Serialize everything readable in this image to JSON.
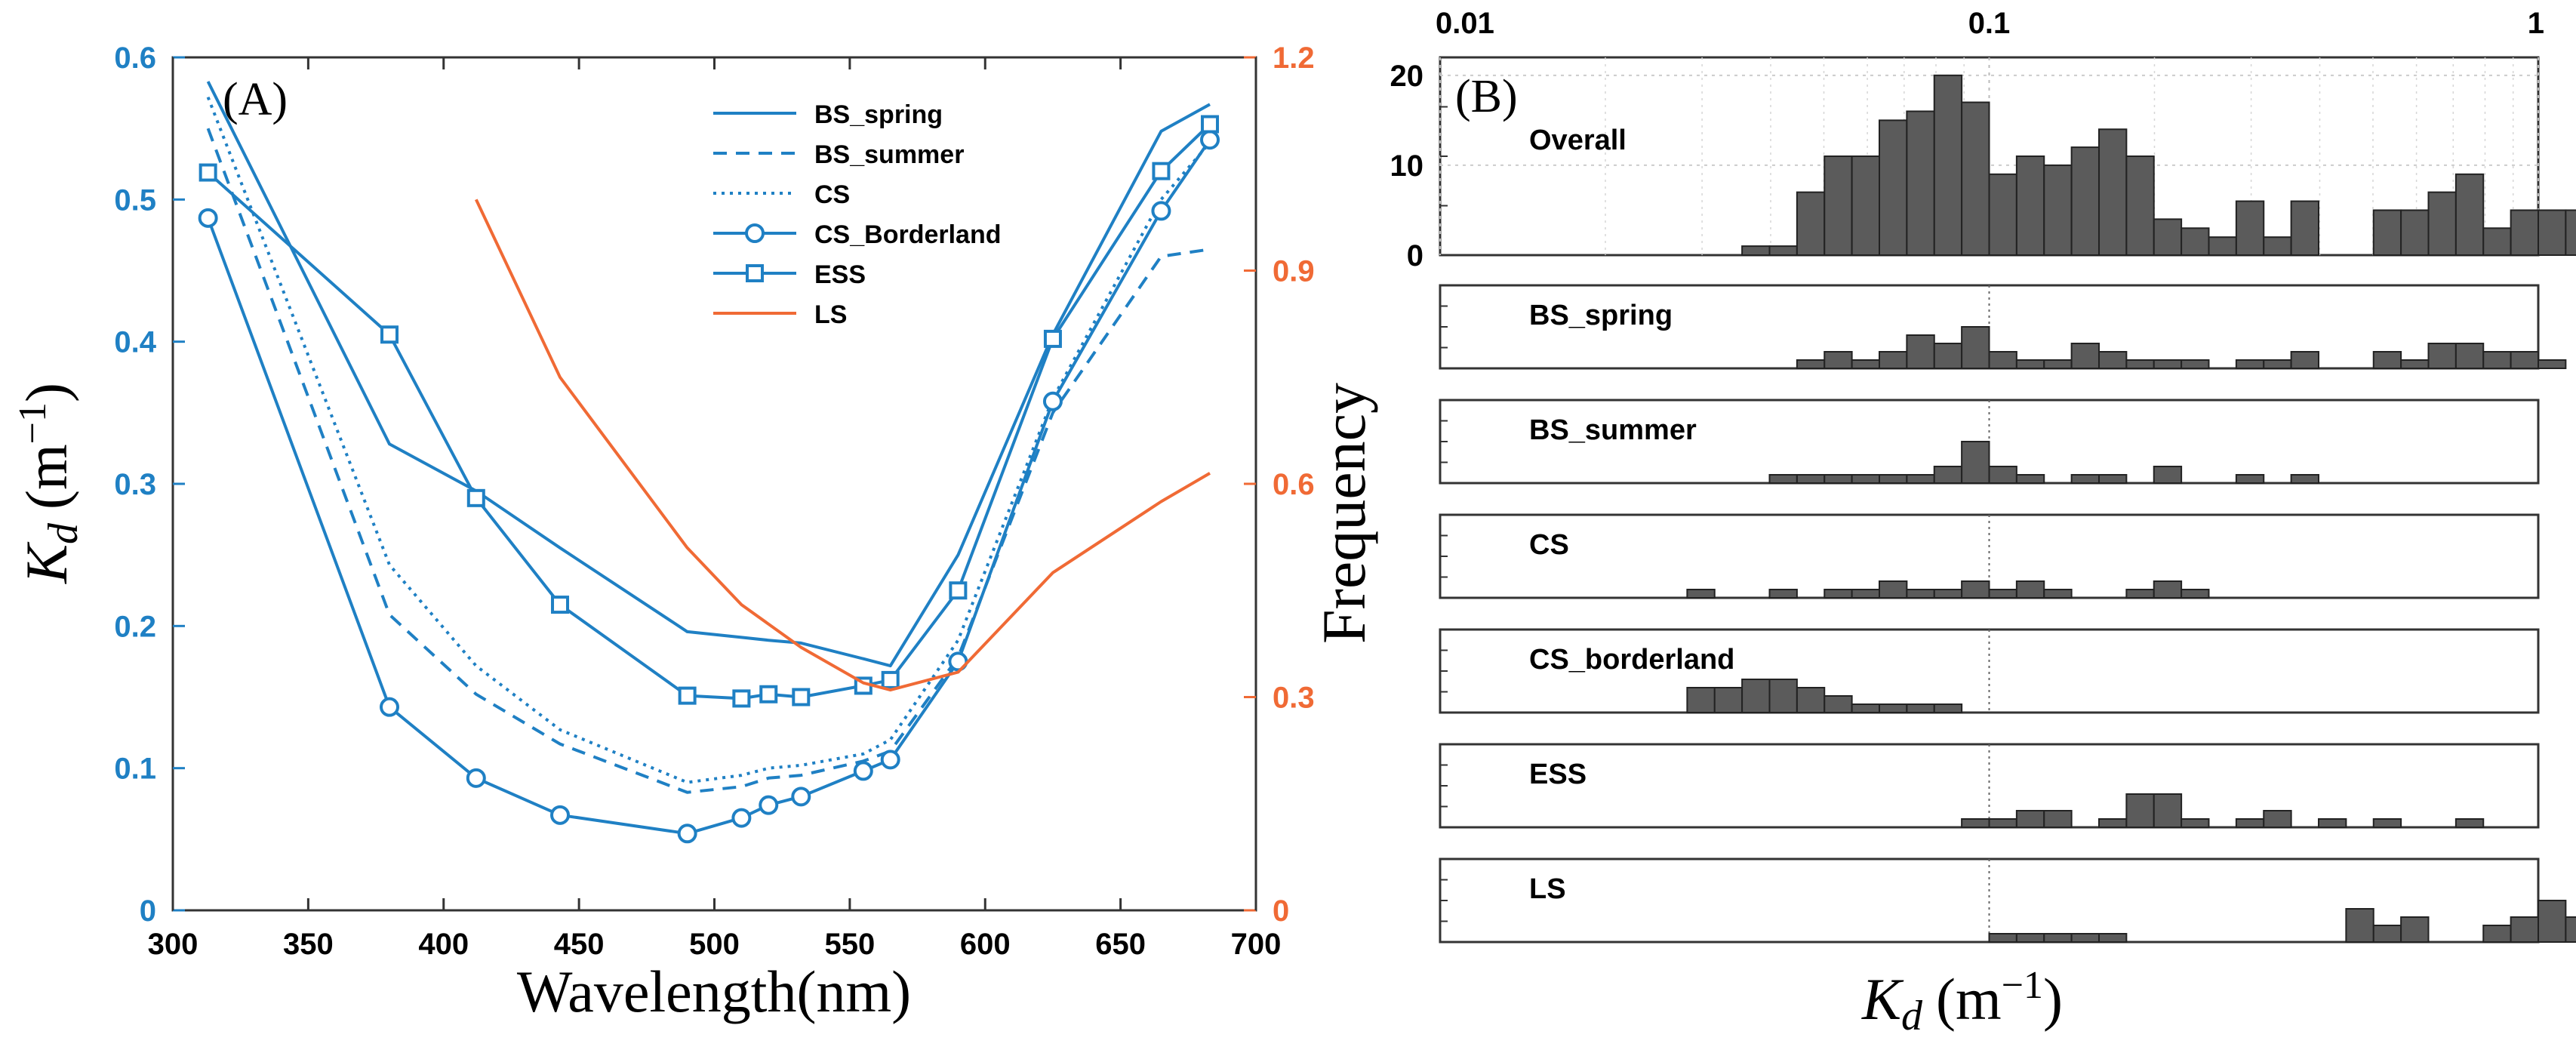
{
  "chart_data": [
    {
      "type": "line",
      "panel_label": "(A)",
      "xlabel": "Wavelength(nm)",
      "ylabel_italic": "K",
      "ylabel_sub": "d",
      "ylabel_unit": "(m",
      "ylabel_exp": "−1",
      "ylabel_close": ")",
      "xlim": [
        300,
        700
      ],
      "ylim_left": [
        0,
        0.6
      ],
      "ylim_right": [
        0,
        1.2
      ],
      "xticks": [
        300,
        350,
        400,
        450,
        500,
        550,
        600,
        650,
        700
      ],
      "yticks_left": [
        "0",
        "0.1",
        "0.2",
        "0.3",
        "0.4",
        "0.5",
        "0.6"
      ],
      "yticks_right": [
        "0",
        "0.3",
        "0.6",
        "0.9",
        "1.2"
      ],
      "colors": {
        "blue": "#1f80c4",
        "orange": "#f06a35"
      },
      "series": [
        {
          "name": "BS_spring",
          "style": "solid",
          "marker": "none",
          "axis": "left",
          "x": [
            313,
            380,
            412,
            443,
            490,
            510,
            520,
            532,
            555,
            565,
            590,
            625,
            665,
            683
          ],
          "y": [
            0.583,
            0.328,
            0.295,
            0.255,
            0.196,
            0.192,
            0.19,
            0.188,
            0.177,
            0.172,
            0.25,
            0.405,
            0.548,
            0.567
          ]
        },
        {
          "name": "BS_summer",
          "style": "dashed",
          "marker": "none",
          "axis": "left",
          "x": [
            313,
            380,
            412,
            443,
            490,
            510,
            520,
            532,
            555,
            565,
            590,
            625,
            665,
            683
          ],
          "y": [
            0.55,
            0.208,
            0.152,
            0.117,
            0.083,
            0.087,
            0.093,
            0.095,
            0.105,
            0.112,
            0.178,
            0.35,
            0.46,
            0.465
          ]
        },
        {
          "name": "CS",
          "style": "dotted",
          "marker": "none",
          "axis": "left",
          "x": [
            313,
            380,
            412,
            443,
            490,
            510,
            520,
            532,
            555,
            565,
            590,
            625,
            665,
            683
          ],
          "y": [
            0.572,
            0.243,
            0.172,
            0.127,
            0.09,
            0.095,
            0.1,
            0.102,
            0.11,
            0.12,
            0.19,
            0.36,
            0.5,
            0.54
          ]
        },
        {
          "name": "CS_Borderland",
          "style": "solid",
          "marker": "circle",
          "axis": "left",
          "x": [
            313,
            380,
            412,
            443,
            490,
            510,
            520,
            532,
            555,
            565,
            590,
            625,
            665,
            683
          ],
          "y": [
            0.487,
            0.143,
            0.093,
            0.067,
            0.054,
            0.065,
            0.074,
            0.08,
            0.098,
            0.106,
            0.175,
            0.358,
            0.492,
            0.542
          ]
        },
        {
          "name": "ESS",
          "style": "solid",
          "marker": "square",
          "axis": "left",
          "x": [
            313,
            380,
            412,
            443,
            490,
            510,
            520,
            532,
            555,
            565,
            590,
            625,
            665,
            683
          ],
          "y": [
            0.519,
            0.405,
            0.29,
            0.215,
            0.151,
            0.149,
            0.152,
            0.15,
            0.158,
            0.162,
            0.225,
            0.402,
            0.52,
            0.553
          ]
        },
        {
          "name": "LS",
          "style": "solid",
          "marker": "none",
          "axis": "right",
          "color": "orange",
          "x": [
            412,
            443,
            490,
            510,
            532,
            555,
            565,
            590,
            625,
            665,
            683
          ],
          "y": [
            1.0,
            0.75,
            0.51,
            0.43,
            0.37,
            0.32,
            0.31,
            0.335,
            0.475,
            0.575,
            0.615
          ]
        }
      ]
    },
    {
      "type": "bar",
      "panel_label": "(B)",
      "xscale": "log",
      "xlim": [
        0.01,
        1
      ],
      "xticks_top": [
        "0.01",
        "0.1",
        "1"
      ],
      "ylabel": "Frequency",
      "xlabel_italic": "K",
      "xlabel_sub": "d",
      "xlabel_unit": "(m",
      "xlabel_exp": "−1",
      "xlabel_close": ")",
      "bin_start_log10": -1.45,
      "bin_width_log10": 0.05,
      "bar_color": "#5b5b5b",
      "panels": [
        {
          "name": "Overall",
          "yticks": [
            "0",
            "10",
            "20"
          ],
          "ymax": 22,
          "counts": [
            1,
            1,
            7,
            11,
            11,
            15,
            16,
            20,
            17,
            9,
            11,
            10,
            12,
            14,
            11,
            4,
            3,
            2,
            6,
            2,
            6,
            0,
            0,
            5,
            5,
            7,
            9,
            3,
            5,
            5,
            5,
            3
          ]
        },
        {
          "name": "BS_spring",
          "ymax": 10,
          "counts": [
            0,
            0,
            1,
            2,
            1,
            2,
            4,
            3,
            5,
            2,
            1,
            1,
            3,
            2,
            1,
            1,
            1,
            0,
            1,
            1,
            2,
            0,
            0,
            2,
            1,
            3,
            3,
            2,
            2,
            1,
            0,
            0
          ]
        },
        {
          "name": "BS_summer",
          "ymax": 10,
          "counts": [
            0,
            1,
            1,
            1,
            1,
            1,
            1,
            2,
            5,
            2,
            1,
            0,
            1,
            1,
            0,
            2,
            0,
            0,
            1,
            0,
            1,
            0,
            0,
            0,
            0,
            0,
            0,
            0,
            0,
            0,
            0,
            0
          ]
        },
        {
          "name": "CS",
          "ymax": 10,
          "counts": [
            0,
            0,
            0,
            0,
            0,
            1,
            0,
            0,
            1,
            0,
            1,
            1,
            2,
            1,
            1,
            2,
            1,
            2,
            1,
            0,
            0,
            1,
            2,
            1,
            0,
            0,
            0,
            0,
            0,
            0,
            0,
            0
          ],
          "counts_note": "bin offset -1.80",
          "bin_start_log10": -1.8
        },
        {
          "name": "CS_borderland",
          "ymax": 10,
          "counts": [
            3,
            3,
            4,
            4,
            3,
            2,
            1,
            1,
            1,
            1,
            0,
            0,
            0,
            0,
            0,
            0,
            0,
            0,
            0,
            0,
            0,
            0,
            0,
            0,
            0,
            0,
            0,
            0,
            0,
            0,
            0,
            0
          ],
          "bin_start_log10": -1.55
        },
        {
          "name": "ESS",
          "ymax": 10,
          "counts": [
            0,
            0,
            0,
            0,
            0,
            0,
            0,
            0,
            0,
            0,
            0,
            0,
            0,
            0,
            0,
            1,
            1,
            2,
            2,
            0,
            1,
            4,
            4,
            1,
            0,
            1,
            2,
            0,
            1,
            0,
            1,
            0,
            0,
            1
          ],
          "bin_start_log10": -1.8
        },
        {
          "name": "LS",
          "ymax": 10,
          "counts": [
            1,
            1,
            1,
            1,
            1,
            0,
            0,
            0,
            0,
            0,
            0,
            0,
            0,
            4,
            2,
            3,
            0,
            0,
            2,
            3,
            5,
            3
          ],
          "bin_start_log10": -1.0
        }
      ]
    }
  ]
}
